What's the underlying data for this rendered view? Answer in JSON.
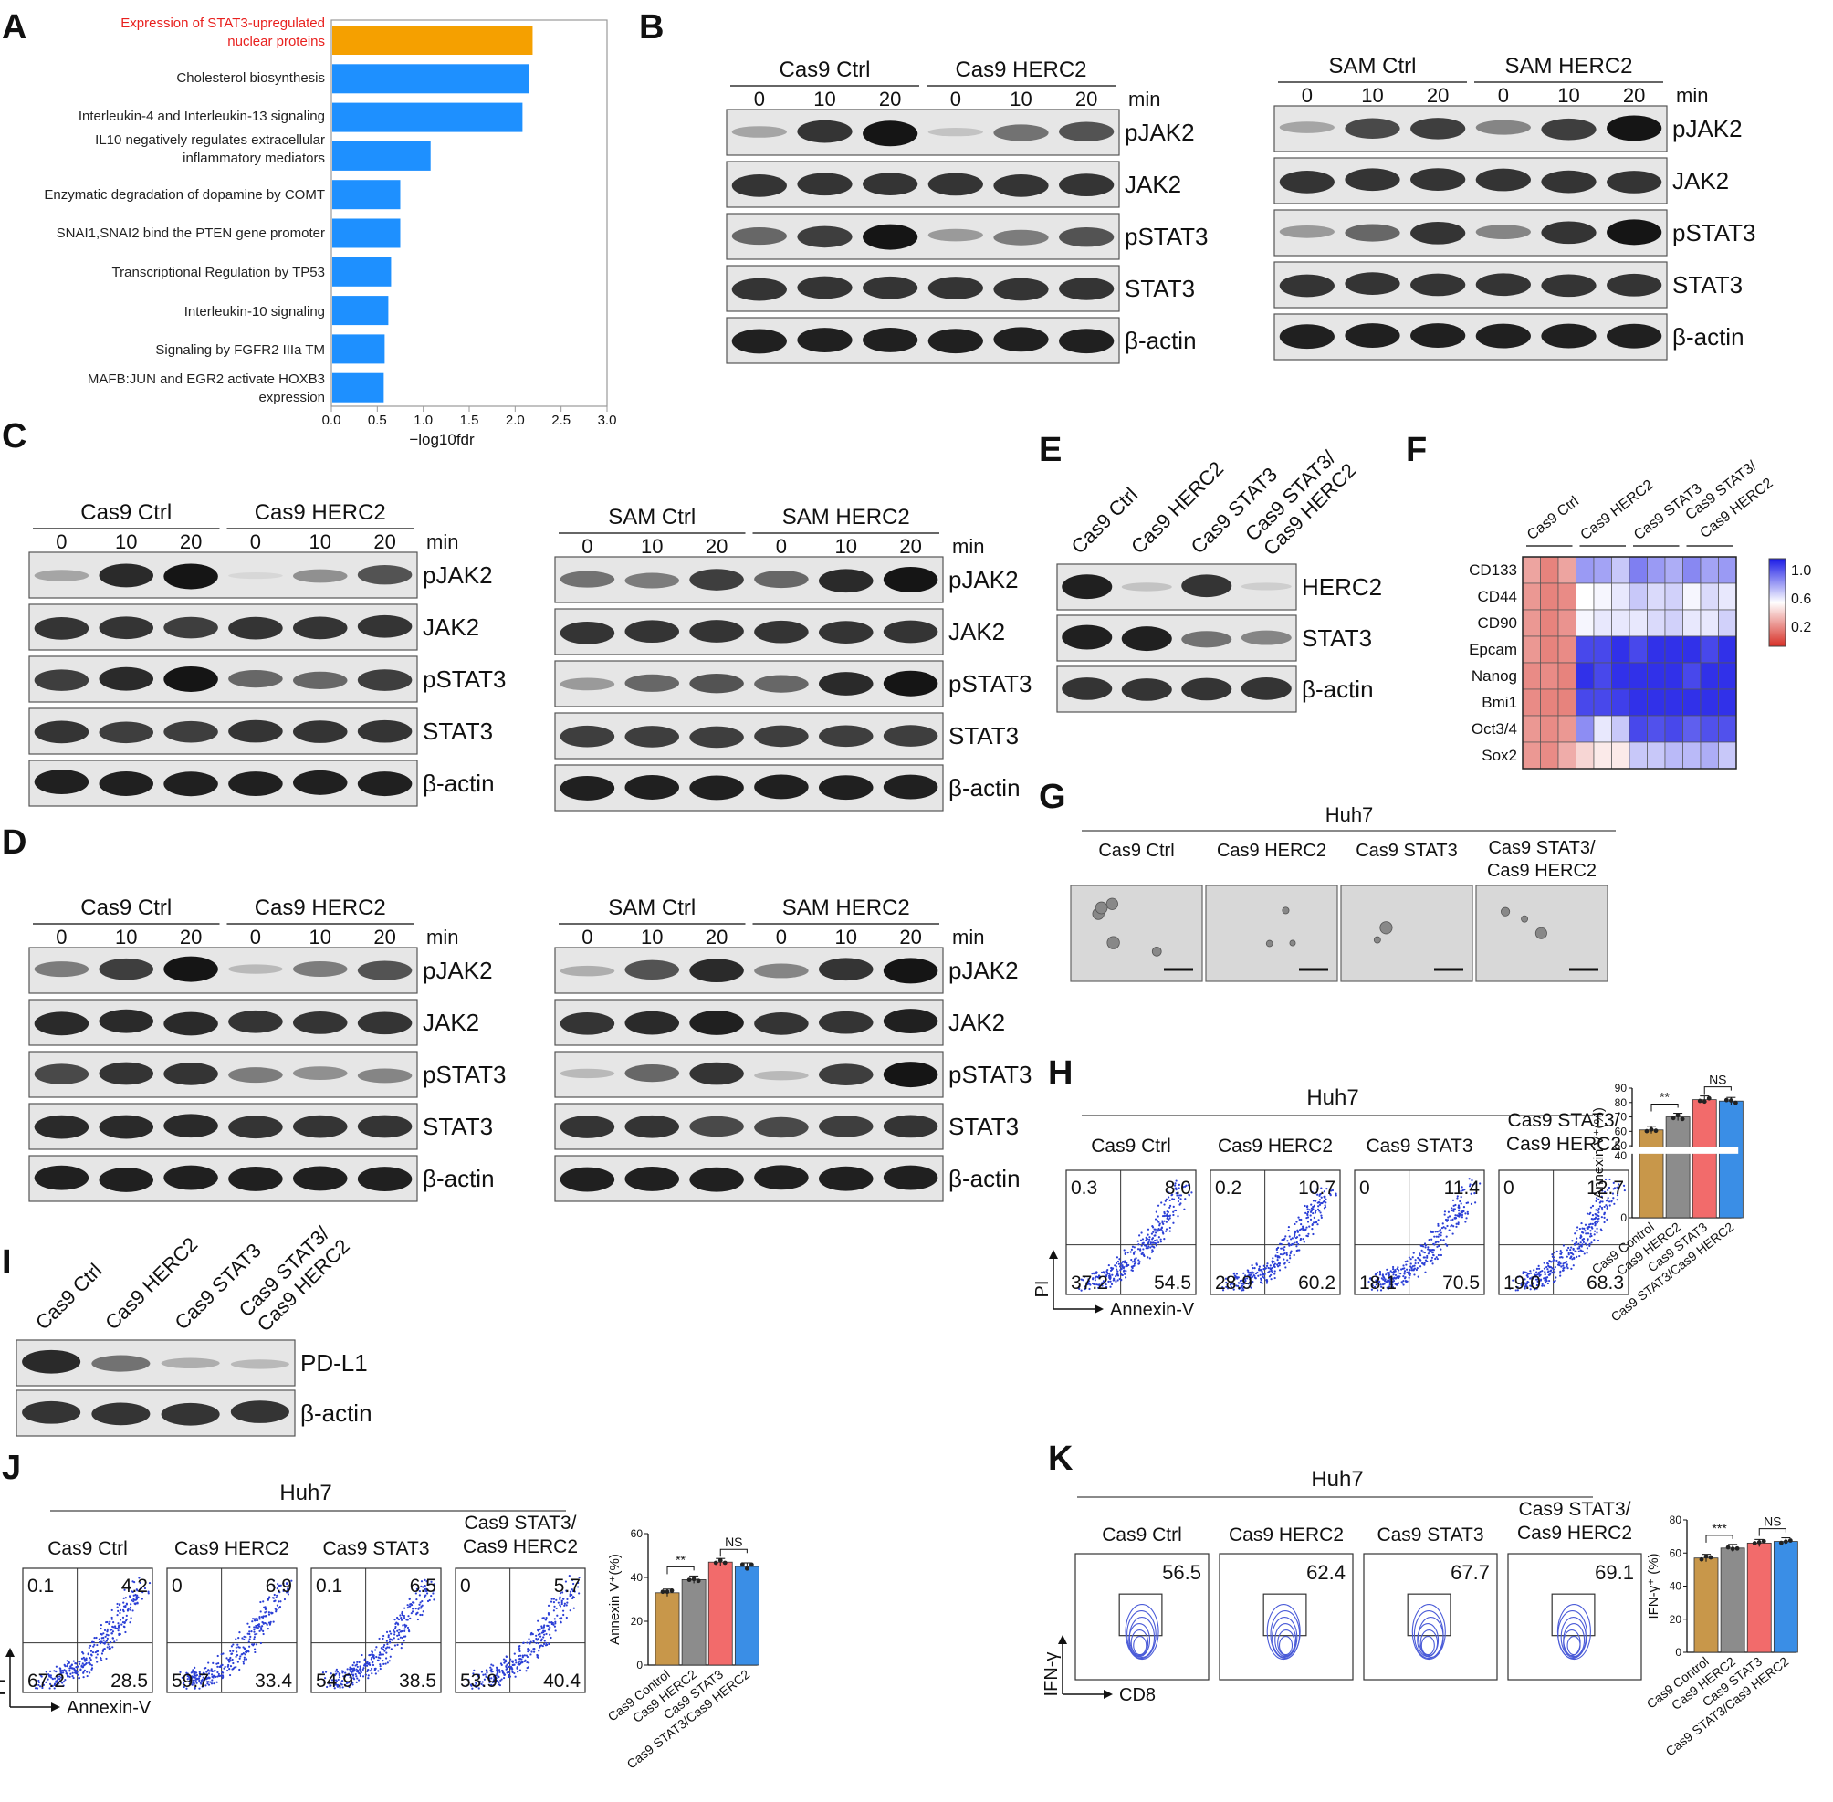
{
  "panel_letters": [
    "A",
    "B",
    "C",
    "D",
    "E",
    "F",
    "G",
    "H",
    "I",
    "J",
    "K"
  ],
  "chart_data": [
    {
      "panel": "A",
      "type": "bar",
      "orientation": "horizontal",
      "categories": [
        "Expression of STAT3-upregulated nuclear proteins",
        "Cholesterol biosynthesis",
        "Interleukin-4 and Interleukin-13 signaling",
        "IL10 negatively regulates extracellular inflammatory mediators",
        "Enzymatic degradation of dopamine by COMT",
        "SNAI1,SNAI2 bind the PTEN gene promoter",
        "Transcriptional Regulation by TP53",
        "Interleukin-10 signaling",
        "Signaling by FGFR2 IIIa TM",
        "MAFB:JUN and EGR2 activate HOXB3 expression"
      ],
      "values": [
        2.18,
        2.14,
        2.07,
        1.07,
        0.74,
        0.74,
        0.64,
        0.61,
        0.57,
        0.56
      ],
      "highlight_index": 0,
      "colors": {
        "highlight": "#F5A000",
        "default": "#1E90FF",
        "highlight_label": "#E8201E"
      },
      "xlabel": "−log10fdr",
      "xlim": [
        0,
        3.0
      ],
      "xticks": [
        "0.0",
        "0.5",
        "1.0",
        "1.5",
        "2.0",
        "2.5",
        "3.0"
      ]
    },
    {
      "panel": "H",
      "type": "bar",
      "categories": [
        "Cas9 Control",
        "Cas9 HERC2",
        "Cas9 STAT3",
        "Cas9 STAT3/Cas9 HERC2"
      ],
      "values": [
        61,
        70,
        82,
        81
      ],
      "ylabel": "Annexin V⁺(%)",
      "ylim": [
        0,
        90
      ],
      "yticks": [
        "0",
        "40",
        "50",
        "60",
        "70",
        "80",
        "90"
      ],
      "axis_break": true,
      "colors": [
        "#C8974A",
        "#8C8C8C",
        "#F26B6B",
        "#3A8EE6"
      ],
      "significance": [
        {
          "label": "**",
          "between": [
            0,
            1
          ]
        },
        {
          "label": "NS",
          "between": [
            2,
            3
          ]
        }
      ]
    },
    {
      "panel": "J",
      "type": "bar",
      "categories": [
        "Cas9 Control",
        "Cas9 HERC2",
        "Cas9 STAT3",
        "Cas9 STAT3/Cas9 HERC2"
      ],
      "values": [
        33,
        39,
        47,
        45
      ],
      "ylabel": "Annexin V⁺(%)",
      "ylim": [
        0,
        60
      ],
      "yticks": [
        "0",
        "20",
        "40",
        "60"
      ],
      "colors": [
        "#C8974A",
        "#8C8C8C",
        "#F26B6B",
        "#3A8EE6"
      ],
      "significance": [
        {
          "label": "**",
          "between": [
            0,
            1
          ]
        },
        {
          "label": "NS",
          "between": [
            2,
            3
          ]
        }
      ]
    },
    {
      "panel": "K",
      "type": "bar",
      "categories": [
        "Cas9 Control",
        "Cas9 HERC2",
        "Cas9 STAT3",
        "Cas9 STAT3/Cas9 HERC2"
      ],
      "values": [
        57,
        63,
        66,
        67
      ],
      "ylabel": "IFN-γ⁺ (%)",
      "ylim": [
        0,
        80
      ],
      "yticks": [
        "0",
        "20",
        "40",
        "60",
        "80"
      ],
      "colors": [
        "#C8974A",
        "#8C8C8C",
        "#F26B6B",
        "#3A8EE6"
      ],
      "significance": [
        {
          "label": "***",
          "between": [
            0,
            1
          ]
        },
        {
          "label": "NS",
          "between": [
            2,
            3
          ]
        }
      ]
    },
    {
      "panel": "F",
      "type": "heatmap",
      "columns": [
        "Cas9 Ctrl",
        "Cas9 HERC2",
        "Cas9 STAT3",
        "Cas9 STAT3/ Cas9 HERC2"
      ],
      "rows": [
        "CD133",
        "CD44",
        "CD90",
        "Epcam",
        "Nanog",
        "Bmi1",
        "Oct3/4",
        "Sox2"
      ],
      "values": [
        [
          0.28,
          0.2,
          0.28,
          0.72,
          0.7,
          0.62,
          0.78,
          0.72,
          0.68,
          0.76,
          0.7,
          0.72
        ],
        [
          0.25,
          0.2,
          0.22,
          0.5,
          0.52,
          0.55,
          0.62,
          0.58,
          0.6,
          0.52,
          0.58,
          0.55
        ],
        [
          0.25,
          0.2,
          0.24,
          0.52,
          0.55,
          0.55,
          0.55,
          0.58,
          0.6,
          0.55,
          0.55,
          0.6
        ],
        [
          0.25,
          0.2,
          0.22,
          0.9,
          0.9,
          0.95,
          0.9,
          0.95,
          0.95,
          0.95,
          0.9,
          0.95
        ],
        [
          0.22,
          0.22,
          0.2,
          0.95,
          0.9,
          0.95,
          0.95,
          0.95,
          0.95,
          0.9,
          0.95,
          0.95
        ],
        [
          0.22,
          0.2,
          0.2,
          0.9,
          0.9,
          0.92,
          0.95,
          0.95,
          0.95,
          0.95,
          0.95,
          0.95
        ],
        [
          0.25,
          0.22,
          0.25,
          0.75,
          0.55,
          0.62,
          0.9,
          0.88,
          0.9,
          0.85,
          0.88,
          0.88
        ],
        [
          0.25,
          0.22,
          0.3,
          0.4,
          0.45,
          0.45,
          0.62,
          0.62,
          0.65,
          0.65,
          0.68,
          0.62
        ]
      ],
      "colorbar_ticks": [
        "1.0",
        "0.6",
        "0.2"
      ],
      "colors": {
        "low": "#D73027",
        "mid": "#FFFFFF",
        "high": "#1A1AE6"
      }
    }
  ],
  "westerns": [
    {
      "id": "B1",
      "groups": [
        "Cas9 Ctrl",
        "Cas9 HERC2"
      ],
      "times": [
        "0",
        "10",
        "20",
        "0",
        "10",
        "20"
      ],
      "unit": "min",
      "bands": [
        "pJAK2",
        "JAK2",
        "pSTAT3",
        "STAT3",
        "β-actin"
      ],
      "intensity": [
        [
          0.3,
          0.85,
          1.0,
          0.15,
          0.55,
          0.7
        ],
        [
          0.85,
          0.85,
          0.85,
          0.85,
          0.85,
          0.85
        ],
        [
          0.6,
          0.8,
          1.0,
          0.35,
          0.5,
          0.7
        ],
        [
          0.85,
          0.85,
          0.85,
          0.85,
          0.85,
          0.85
        ],
        [
          0.95,
          0.95,
          0.95,
          0.95,
          0.95,
          0.95
        ]
      ]
    },
    {
      "id": "B2",
      "groups": [
        "SAM Ctrl",
        "SAM HERC2"
      ],
      "times": [
        "0",
        "10",
        "20",
        "0",
        "10",
        "20"
      ],
      "unit": "min",
      "bands": [
        "pJAK2",
        "JAK2",
        "pSTAT3",
        "STAT3",
        "β-actin"
      ],
      "intensity": [
        [
          0.3,
          0.75,
          0.8,
          0.45,
          0.8,
          1.0
        ],
        [
          0.85,
          0.85,
          0.85,
          0.85,
          0.85,
          0.85
        ],
        [
          0.35,
          0.6,
          0.85,
          0.45,
          0.85,
          1.0
        ],
        [
          0.85,
          0.85,
          0.85,
          0.85,
          0.85,
          0.85
        ],
        [
          0.95,
          0.95,
          0.95,
          0.95,
          0.95,
          0.95
        ]
      ]
    },
    {
      "id": "C1",
      "groups": [
        "Cas9 Ctrl",
        "Cas9 HERC2"
      ],
      "times": [
        "0",
        "10",
        "20",
        "0",
        "10",
        "20"
      ],
      "unit": "min",
      "bands": [
        "pJAK2",
        "JAK2",
        "pSTAT3",
        "STAT3",
        "β-actin"
      ],
      "intensity": [
        [
          0.3,
          0.9,
          1.0,
          0.05,
          0.4,
          0.7
        ],
        [
          0.85,
          0.85,
          0.8,
          0.85,
          0.85,
          0.85
        ],
        [
          0.8,
          0.9,
          1.0,
          0.6,
          0.6,
          0.8
        ],
        [
          0.85,
          0.8,
          0.8,
          0.85,
          0.85,
          0.85
        ],
        [
          0.95,
          0.95,
          0.95,
          0.95,
          0.95,
          0.95
        ]
      ]
    },
    {
      "id": "C2",
      "groups": [
        "SAM Ctrl",
        "SAM HERC2"
      ],
      "times": [
        "0",
        "10",
        "20",
        "0",
        "10",
        "20"
      ],
      "unit": "min",
      "bands": [
        "pJAK2",
        "JAK2",
        "pSTAT3",
        "STAT3",
        "β-actin"
      ],
      "intensity": [
        [
          0.55,
          0.5,
          0.8,
          0.6,
          0.9,
          1.0
        ],
        [
          0.85,
          0.85,
          0.85,
          0.85,
          0.85,
          0.85
        ],
        [
          0.35,
          0.6,
          0.7,
          0.6,
          0.9,
          1.0
        ],
        [
          0.8,
          0.8,
          0.8,
          0.8,
          0.8,
          0.8
        ],
        [
          0.95,
          0.95,
          0.95,
          0.95,
          0.95,
          0.95
        ]
      ]
    },
    {
      "id": "D1",
      "groups": [
        "Cas9 Ctrl",
        "Cas9 HERC2"
      ],
      "times": [
        "0",
        "10",
        "20",
        "0",
        "10",
        "20"
      ],
      "unit": "min",
      "bands": [
        "pJAK2",
        "JAK2",
        "pSTAT3",
        "STAT3",
        "β-actin"
      ],
      "intensity": [
        [
          0.5,
          0.8,
          1.0,
          0.2,
          0.5,
          0.7
        ],
        [
          0.9,
          0.9,
          0.9,
          0.85,
          0.85,
          0.85
        ],
        [
          0.75,
          0.85,
          0.85,
          0.5,
          0.4,
          0.45
        ],
        [
          0.9,
          0.9,
          0.9,
          0.85,
          0.85,
          0.85
        ],
        [
          0.95,
          0.95,
          0.95,
          0.95,
          0.95,
          0.95
        ]
      ]
    },
    {
      "id": "D2",
      "groups": [
        "SAM Ctrl",
        "SAM HERC2"
      ],
      "times": [
        "0",
        "10",
        "20",
        "0",
        "10",
        "20"
      ],
      "unit": "min",
      "bands": [
        "pJAK2",
        "JAK2",
        "pSTAT3",
        "STAT3",
        "β-actin"
      ],
      "intensity": [
        [
          0.25,
          0.7,
          0.9,
          0.45,
          0.85,
          1.0
        ],
        [
          0.85,
          0.9,
          0.95,
          0.85,
          0.85,
          0.95
        ],
        [
          0.2,
          0.6,
          0.85,
          0.2,
          0.8,
          1.0
        ],
        [
          0.85,
          0.85,
          0.75,
          0.75,
          0.8,
          0.85
        ],
        [
          0.95,
          0.95,
          0.95,
          0.95,
          0.95,
          0.95
        ]
      ]
    },
    {
      "id": "E",
      "groups": [],
      "times": [],
      "unit": "",
      "col_labels": [
        "Cas9 Ctrl",
        "Cas9 HERC2",
        "Cas9 STAT3",
        "Cas9 STAT3/ Cas9 HERC2"
      ],
      "bands": [
        "HERC2",
        "STAT3",
        "β-actin"
      ],
      "intensity": [
        [
          0.95,
          0.15,
          0.85,
          0.1
        ],
        [
          0.95,
          0.95,
          0.55,
          0.45
        ],
        [
          0.85,
          0.85,
          0.85,
          0.85
        ]
      ]
    },
    {
      "id": "I",
      "groups": [],
      "times": [],
      "unit": "",
      "col_labels": [
        "Cas9 Ctrl",
        "Cas9 HERC2",
        "Cas9 STAT3",
        "Cas9 STAT3/ Cas9 HERC2"
      ],
      "bands": [
        "PD-L1",
        "β-actin"
      ],
      "intensity": [
        [
          0.9,
          0.55,
          0.25,
          0.2
        ],
        [
          0.85,
          0.85,
          0.85,
          0.85
        ]
      ]
    }
  ],
  "colony": {
    "panel": "G",
    "title": "Huh7",
    "groups": [
      "Cas9 Ctrl",
      "Cas9 HERC2",
      "Cas9 STAT3",
      "Cas9 STAT3/ Cas9 HERC2"
    ]
  },
  "flow": [
    {
      "panel": "H",
      "title": "Huh7",
      "groups": [
        "Cas9 Ctrl",
        "Cas9 HERC2",
        "Cas9 STAT3",
        "Cas9 STAT3/ Cas9 HERC2"
      ],
      "quadrants": [
        [
          "0.3",
          "8.0",
          "37.2",
          "54.5"
        ],
        [
          "0.2",
          "10.7",
          "28.9",
          "60.2"
        ],
        [
          "0",
          "11.4",
          "18.1",
          "70.5"
        ],
        [
          "0",
          "12.7",
          "19.0",
          "68.3"
        ]
      ],
      "xlabel": "Annexin-V",
      "ylabel": "PI"
    },
    {
      "panel": "J",
      "title": "Huh7",
      "groups": [
        "Cas9 Ctrl",
        "Cas9 HERC2",
        "Cas9 STAT3",
        "Cas9 STAT3/ Cas9 HERC2"
      ],
      "quadrants": [
        [
          "0.1",
          "4.2",
          "67.2",
          "28.5"
        ],
        [
          "0",
          "6.9",
          "59.7",
          "33.4"
        ],
        [
          "0.1",
          "6.5",
          "54.9",
          "38.5"
        ],
        [
          "0",
          "5.7",
          "53.9",
          "40.4"
        ]
      ],
      "xlabel": "Annexin-V",
      "ylabel": "PI"
    },
    {
      "panel": "K",
      "title": "Huh7",
      "groups": [
        "Cas9 Ctrl",
        "Cas9 HERC2",
        "Cas9 STAT3",
        "Cas9 STAT3/ Cas9 HERC2"
      ],
      "gate_values": [
        "56.5",
        "62.4",
        "67.7",
        "69.1"
      ],
      "xlabel": "CD8",
      "ylabel": "IFN-γ"
    }
  ]
}
